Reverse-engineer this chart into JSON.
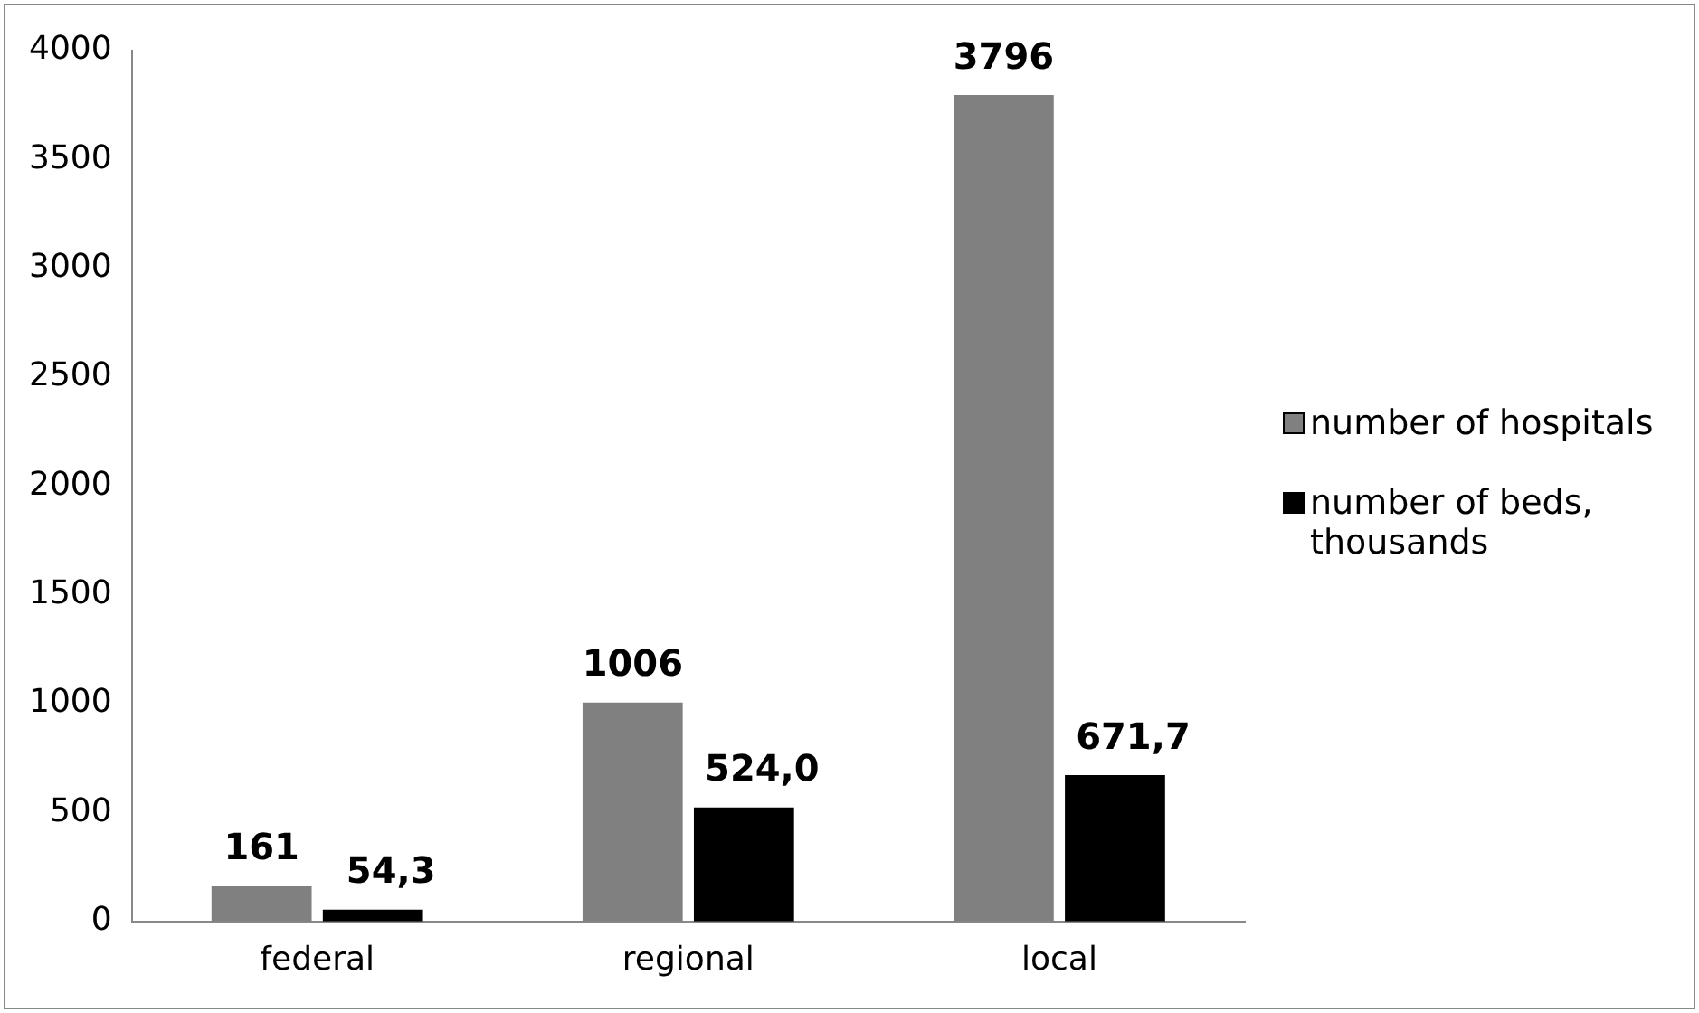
{
  "chart_data": {
    "type": "bar",
    "categories": [
      "federal",
      "regional",
      "local"
    ],
    "series": [
      {
        "name": "number of hospitals",
        "color": "#808080",
        "values": [
          161,
          1006,
          3796
        ],
        "value_labels": [
          "161",
          "1006",
          "3796"
        ]
      },
      {
        "name": "number of beds, thousands",
        "color": "#000000",
        "values": [
          54.3,
          524.0,
          671.7
        ],
        "value_labels": [
          "54,3",
          "524,0",
          "671,7"
        ]
      }
    ],
    "ylim": [
      0,
      4000
    ],
    "yticks": [
      0,
      500,
      1000,
      1500,
      2000,
      2500,
      3000,
      3500,
      4000
    ],
    "grid": false,
    "legend": "right"
  }
}
